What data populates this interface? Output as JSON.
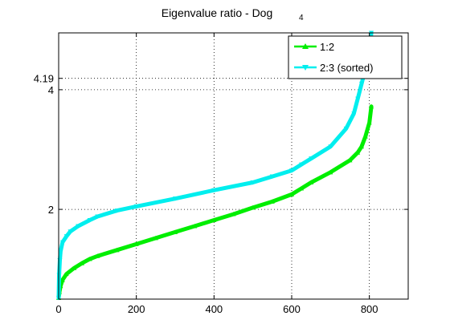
{
  "chart_data": {
    "type": "line",
    "title": "Eigenvalue ratio - Dog",
    "title_subscript": "4",
    "xlabel": "",
    "ylabel": "",
    "xlim": [
      0,
      900
    ],
    "ylim": [
      0.5,
      4.95
    ],
    "x_ticks": [
      0,
      200,
      400,
      600,
      800
    ],
    "y_ticks": [
      2,
      4,
      4.19
    ],
    "y_tick_labels": [
      "2",
      "4",
      "4.19"
    ],
    "grid": true,
    "legend_position": "top-right",
    "series": [
      {
        "name": "1:2",
        "color": "#00ee00",
        "marker": "triangle-up",
        "x": [
          0,
          2,
          5,
          10,
          20,
          40,
          60,
          80,
          100,
          150,
          200,
          250,
          300,
          350,
          400,
          450,
          500,
          550,
          600,
          625,
          650,
          700,
          750,
          770,
          780,
          790,
          800,
          805
        ],
        "y": [
          0.52,
          0.62,
          0.72,
          0.82,
          0.92,
          1.02,
          1.1,
          1.17,
          1.22,
          1.32,
          1.42,
          1.52,
          1.62,
          1.72,
          1.82,
          1.92,
          2.03,
          2.13,
          2.25,
          2.35,
          2.45,
          2.62,
          2.82,
          2.95,
          3.05,
          3.22,
          3.45,
          3.72
        ]
      },
      {
        "name": "2:3 (sorted)",
        "color": "#00eeee",
        "marker": "triangle-down",
        "x": [
          0,
          1,
          3,
          5,
          10,
          20,
          30,
          50,
          80,
          100,
          150,
          200,
          300,
          400,
          500,
          550,
          600,
          625,
          650,
          700,
          740,
          760,
          770,
          780,
          790,
          800,
          805
        ],
        "y": [
          0.52,
          0.9,
          1.15,
          1.3,
          1.45,
          1.55,
          1.63,
          1.72,
          1.82,
          1.88,
          1.98,
          2.05,
          2.18,
          2.32,
          2.45,
          2.55,
          2.65,
          2.75,
          2.85,
          3.05,
          3.35,
          3.6,
          3.85,
          4.1,
          4.35,
          4.65,
          4.95
        ]
      }
    ]
  }
}
